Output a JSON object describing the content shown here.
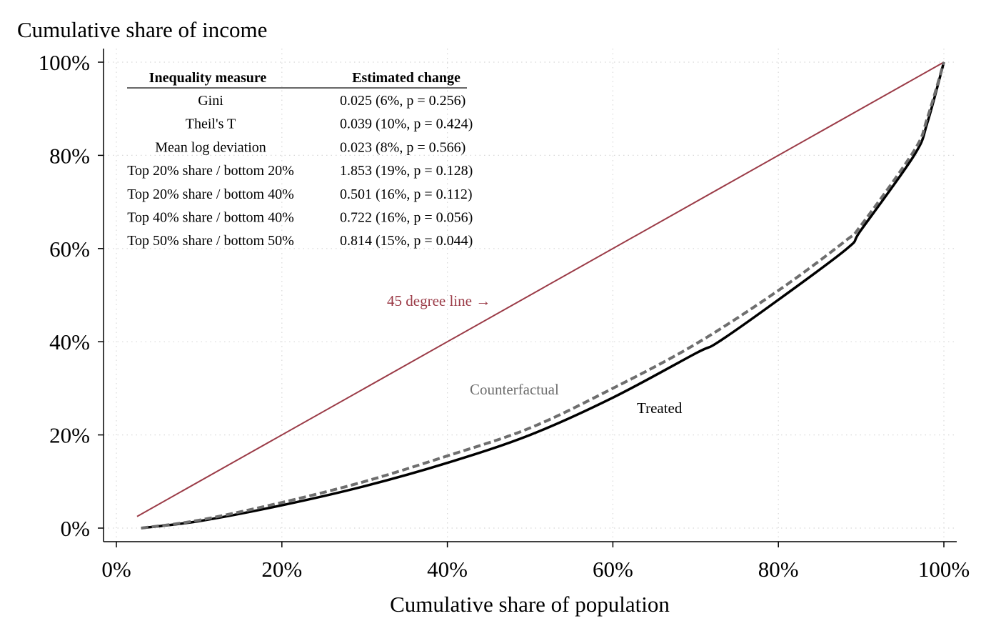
{
  "chart_data": {
    "type": "line",
    "title": "",
    "ylabel": "Cumulative share of income",
    "xlabel": "Cumulative share of population",
    "xlim": [
      0,
      100
    ],
    "ylim": [
      0,
      100
    ],
    "x_ticks": [
      "0%",
      "20%",
      "40%",
      "60%",
      "80%",
      "100%"
    ],
    "y_ticks": [
      "0%",
      "20%",
      "40%",
      "60%",
      "80%",
      "100%"
    ],
    "tick_values": [
      0,
      20,
      40,
      60,
      80,
      100
    ],
    "grid": true,
    "series": [
      {
        "name": "45 degree line",
        "label": "45 degree line →",
        "style": "solid",
        "color": "#9b3b47",
        "x": [
          2.5,
          100
        ],
        "y": [
          2.5,
          100
        ]
      },
      {
        "name": "Counterfactual",
        "label": "Counterfactual",
        "style": "dashed",
        "color": "#6e6e6e",
        "x": [
          3,
          10,
          20,
          30,
          40,
          50,
          60,
          70,
          80,
          88,
          90,
          96.4,
          98,
          100
        ],
        "y": [
          0,
          1.7,
          5.5,
          10,
          15.5,
          21.5,
          30,
          39.5,
          51,
          61.5,
          65,
          81,
          88,
          100
        ]
      },
      {
        "name": "Treated",
        "label": "Treated",
        "style": "solid",
        "color": "#000000",
        "x": [
          3,
          10,
          20,
          30,
          40,
          50,
          60,
          70,
          72.8,
          80,
          88.3,
          90,
          96.4,
          98,
          100
        ],
        "y": [
          0,
          1.5,
          4.9,
          9,
          14,
          20,
          28,
          37.5,
          40,
          49,
          60,
          64,
          80,
          87,
          100
        ]
      }
    ],
    "table": {
      "headers": [
        "Inequality measure",
        "Estimated change"
      ],
      "rows": [
        [
          "Gini",
          "0.025 (6%, p = 0.256)"
        ],
        [
          "Theil's T",
          "0.039 (10%, p = 0.424)"
        ],
        [
          "Mean log deviation",
          "0.023 (8%, p = 0.566)"
        ],
        [
          "Top 20% share / bottom 20%",
          "1.853 (19%, p = 0.128)"
        ],
        [
          "Top 20% share / bottom 40%",
          "0.501 (16%, p = 0.112)"
        ],
        [
          "Top 40% share / bottom 40%",
          "0.722 (16%, p = 0.056)"
        ],
        [
          "Top 50% share / bottom 50%",
          "0.814 (15%, p = 0.044)"
        ]
      ]
    }
  }
}
